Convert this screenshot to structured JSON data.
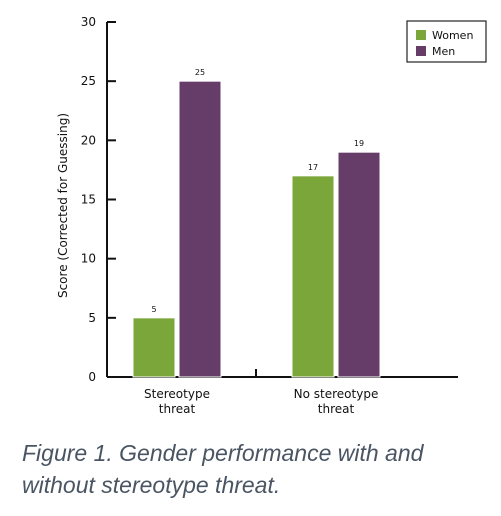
{
  "chart_data": {
    "type": "bar",
    "ylabel": "Score (Corrected for Guessing)",
    "ylim": [
      0,
      30
    ],
    "yticks": [
      0,
      5,
      10,
      15,
      20,
      25,
      30
    ],
    "categories": [
      "Stereotype threat",
      "No stereotype threat"
    ],
    "category_label_lines": [
      [
        "Stereotype",
        "threat"
      ],
      [
        "No stereotype",
        "threat"
      ]
    ],
    "series": [
      {
        "name": "Women",
        "color": "#7aa63a",
        "values": [
          5,
          17
        ]
      },
      {
        "name": "Men",
        "color": "#663c68",
        "values": [
          25,
          19
        ]
      }
    ],
    "data_labels": [
      [
        "5",
        "25"
      ],
      [
        "17",
        "19"
      ]
    ],
    "value_max": [
      5.2,
      25.2
    ],
    "legend_position": "top-right",
    "grid": false
  },
  "caption": {
    "line1": "Figure 1. Gender performance with and",
    "line2": "without stereotype threat."
  }
}
